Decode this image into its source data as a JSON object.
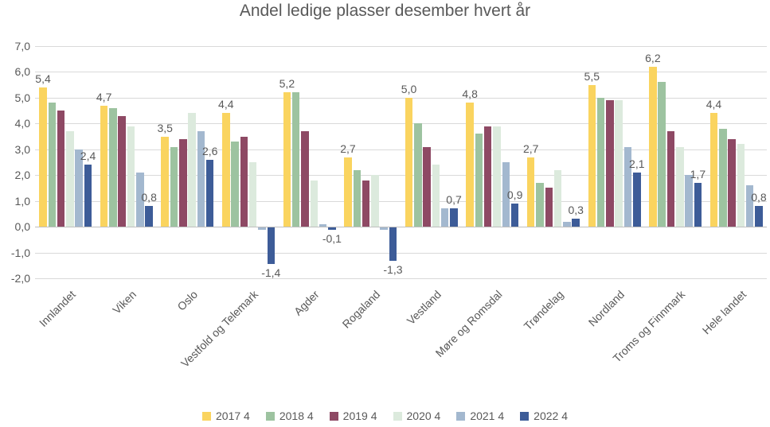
{
  "chart_data": {
    "type": "bar",
    "title": "Andel ledige plasser desember hvert år",
    "categories": [
      "Innlandet",
      "Viken",
      "Oslo",
      "Vestfold og Telemark",
      "Agder",
      "Rogaland",
      "Vestland",
      "Møre og Romsdal",
      "Trøndelag",
      "Nordland",
      "Troms og Finnmark",
      "Hele landet"
    ],
    "series": [
      {
        "name": "2017 4",
        "color": "#FAD45F",
        "values": [
          5.4,
          4.7,
          3.5,
          4.4,
          5.2,
          2.7,
          5.0,
          4.8,
          2.7,
          5.5,
          6.2,
          4.4
        ]
      },
      {
        "name": "2018 4",
        "color": "#9DC3A0",
        "values": [
          4.8,
          4.6,
          3.1,
          3.3,
          5.2,
          2.2,
          4.0,
          3.6,
          1.7,
          5.0,
          5.6,
          3.8
        ]
      },
      {
        "name": "2019 4",
        "color": "#8E4964",
        "values": [
          4.5,
          4.3,
          3.4,
          3.5,
          3.7,
          1.8,
          3.1,
          3.9,
          1.5,
          4.9,
          3.7,
          3.4
        ]
      },
      {
        "name": "2020 4",
        "color": "#DCEADD",
        "values": [
          3.7,
          3.9,
          4.4,
          2.5,
          1.8,
          2.0,
          2.4,
          3.9,
          2.2,
          4.9,
          3.1,
          3.2
        ]
      },
      {
        "name": "2021 4",
        "color": "#A3B8CF",
        "values": [
          3.0,
          2.1,
          3.7,
          -0.1,
          0.1,
          -0.1,
          0.7,
          2.5,
          0.2,
          3.1,
          2.0,
          1.6
        ]
      },
      {
        "name": "2022 4",
        "color": "#3D5C98",
        "values": [
          2.4,
          0.8,
          2.6,
          -1.4,
          -0.1,
          -1.3,
          0.7,
          0.9,
          0.3,
          2.1,
          1.7,
          0.8
        ]
      }
    ],
    "labeled_series": [
      "2017 4",
      "2022 4"
    ],
    "value_labels_2017": [
      "5,4",
      "4,7",
      "3,5",
      "4,4",
      "5,2",
      "2,7",
      "5,0",
      "4,8",
      "2,7",
      "5,5",
      "6,2",
      "4,4"
    ],
    "value_labels_2022": [
      "2,4",
      "0,8",
      "2,6",
      "-1,4",
      "-0,1",
      "-1,3",
      "0,7",
      "0,9",
      "0,3",
      "2,1",
      "1,7",
      "0,8"
    ],
    "xlabel": "",
    "ylabel": "",
    "ylim": [
      -2.0,
      7.0
    ],
    "ytick_step": 1.0,
    "ytick_labels": [
      "7,0",
      "6,0",
      "5,0",
      "4,0",
      "3,0",
      "2,0",
      "1,0",
      "0,0",
      "-1,0",
      "-2,0"
    ],
    "decimal_separator": ",",
    "grid": "on",
    "legend_position": "bottom",
    "colors": {
      "text": "#595959",
      "gridline": "#D9D9D9",
      "zero_axis": "#BFBFBF",
      "background": "#FFFFFF"
    }
  }
}
